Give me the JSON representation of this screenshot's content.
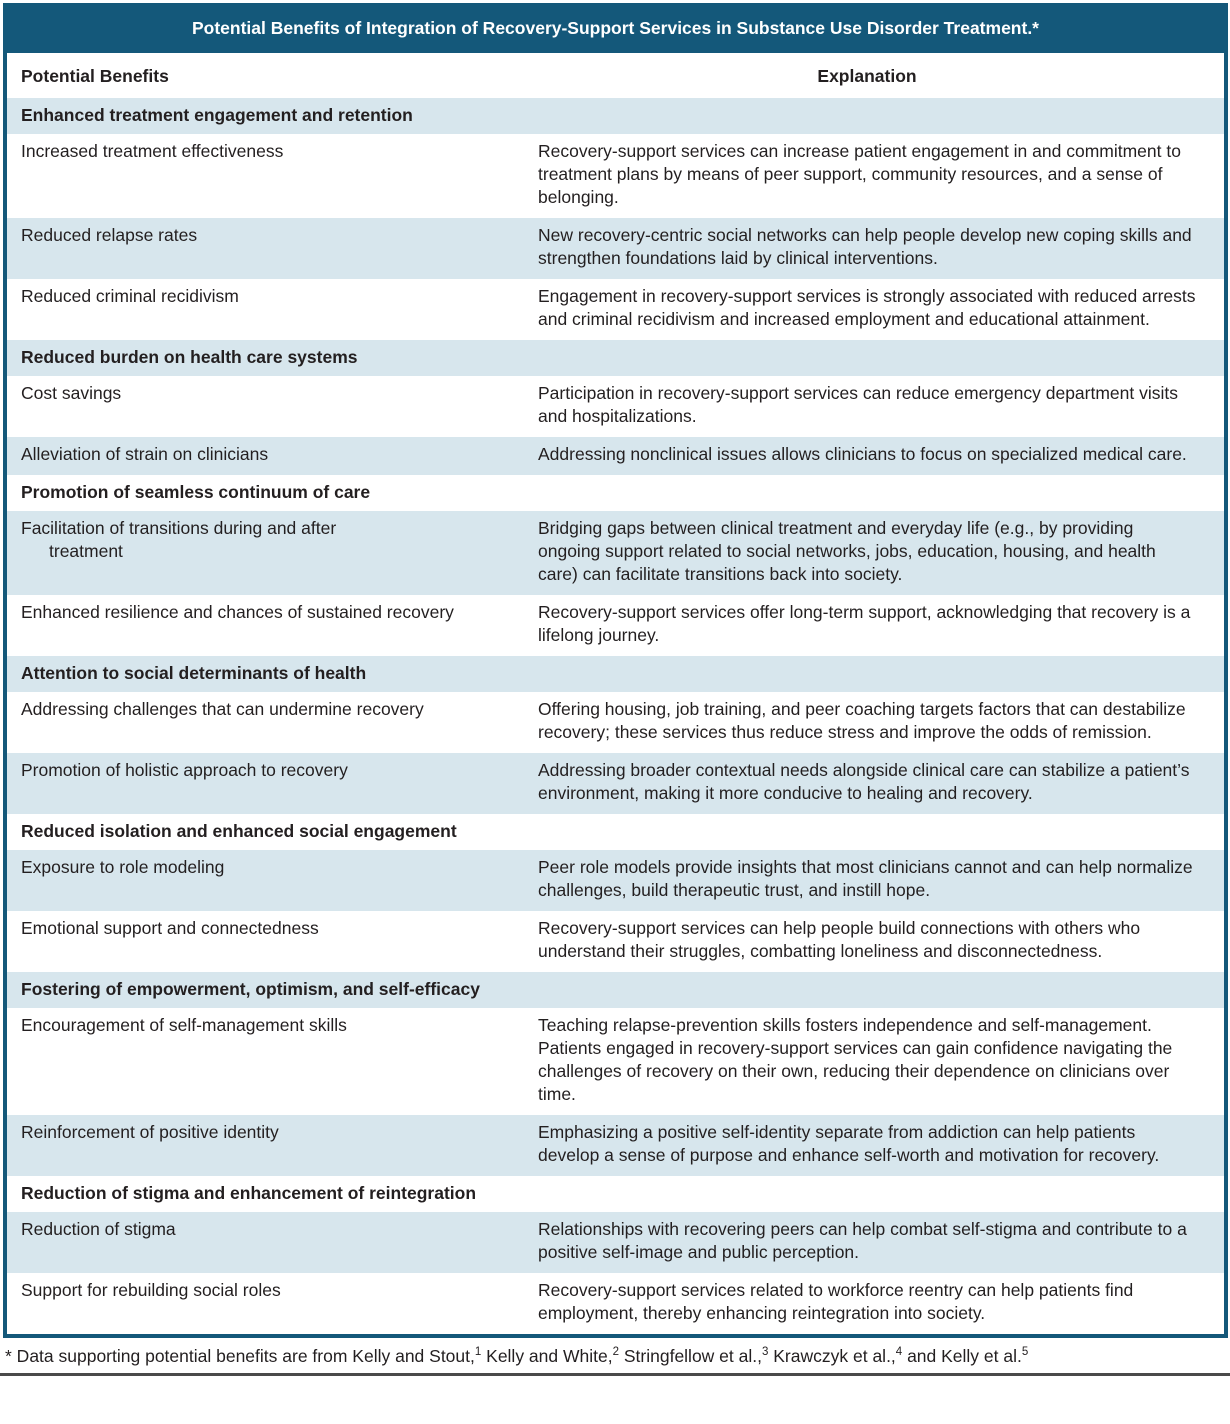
{
  "colors": {
    "header_bar": "#14587A",
    "row_shaded": "#D7E6ED",
    "text": "#231F20",
    "bottom_rule": "#4A4A4A"
  },
  "table": {
    "title": "Potential Benefits of Integration of Recovery-Support Services in Substance Use Disorder Treatment.*",
    "columns": [
      "Potential Benefits",
      "Explanation"
    ],
    "rows": [
      {
        "type": "section",
        "benefit": "Enhanced treatment engagement and retention",
        "explanation": ""
      },
      {
        "type": "item",
        "benefit": "Increased treatment effectiveness",
        "explanation": "Recovery-support services can increase patient engagement in and commitment to treatment plans by means of peer support, community resources, and a sense of belonging."
      },
      {
        "type": "item",
        "benefit": "Reduced relapse rates",
        "explanation": "New recovery-centric social networks can help people develop new coping skills and strengthen foundations laid by clinical interventions."
      },
      {
        "type": "item",
        "benefit": "Reduced criminal recidivism",
        "explanation": "Engagement in recovery-support services is strongly associated with reduced arrests and criminal recidivism and increased employment and educational attainment."
      },
      {
        "type": "section",
        "benefit": "Reduced burden on health care systems",
        "explanation": ""
      },
      {
        "type": "item",
        "benefit": "Cost savings",
        "explanation": "Participation in recovery-support services can reduce emergency department visits and hospitalizations."
      },
      {
        "type": "item",
        "benefit": "Alleviation of strain on clinicians",
        "explanation": "Addressing nonclinical issues allows clinicians to focus on specialized medical care."
      },
      {
        "type": "section",
        "benefit": "Promotion of seamless continuum of care",
        "explanation": ""
      },
      {
        "type": "item",
        "benefit": "Facilitation of transitions during and after\ntreatment",
        "explanation": "Bridging gaps between clinical treatment and everyday life (e.g., by providing ongoing support related to social networks, jobs, education, housing, and health care) can facilitate transitions back into society."
      },
      {
        "type": "item",
        "benefit": "Enhanced resilience and chances of sustained recovery",
        "explanation": "Recovery-support services offer long-term support, acknowledging that recovery is a lifelong journey."
      },
      {
        "type": "section",
        "benefit": "Attention to social determinants of health",
        "explanation": ""
      },
      {
        "type": "item",
        "benefit": "Addressing challenges that can undermine recovery",
        "explanation": "Offering housing, job training, and peer coaching targets factors that can destabilize recovery; these services thus reduce stress and improve the odds of remission."
      },
      {
        "type": "item",
        "benefit": "Promotion of holistic approach to recovery",
        "explanation": "Addressing broader contextual needs alongside clinical care can stabilize a patient’s environment, making it more conducive to healing and recovery."
      },
      {
        "type": "section",
        "benefit": "Reduced isolation and enhanced social engagement",
        "explanation": ""
      },
      {
        "type": "item",
        "benefit": "Exposure to role modeling",
        "explanation": "Peer role models provide insights that most clinicians cannot and can help normalize challenges, build therapeutic trust, and instill hope."
      },
      {
        "type": "item",
        "benefit": "Emotional support and connectedness",
        "explanation": "Recovery-support services can help people build connections with others who understand their struggles, combatting loneliness and disconnectedness."
      },
      {
        "type": "section",
        "benefit": "Fostering of empowerment, optimism, and self-efficacy",
        "explanation": ""
      },
      {
        "type": "item",
        "benefit": "Encouragement of self-management skills",
        "explanation": "Teaching relapse-prevention skills fosters independence and self-management. Patients engaged in recovery-support services can gain confidence navigating the challenges of recovery on their own, reducing their dependence on clinicians over time."
      },
      {
        "type": "item",
        "benefit": "Reinforcement of positive identity",
        "explanation": "Emphasizing a positive self-identity separate from addiction can help patients develop a sense of purpose and enhance self-worth and motivation for recovery."
      },
      {
        "type": "section",
        "benefit": "Reduction of stigma and enhancement of reintegration",
        "explanation": ""
      },
      {
        "type": "item",
        "benefit": "Reduction of stigma",
        "explanation": "Relationships with recovering peers can help combat self-stigma and contribute to a positive self-image and public perception."
      },
      {
        "type": "item",
        "benefit": "Support for rebuilding social roles",
        "explanation": "Recovery-support services related to workforce reentry can help patients find employment, thereby enhancing reintegration into society."
      }
    ]
  },
  "footnote": {
    "marker": "*",
    "lead": " Data supporting potential benefits are from ",
    "citations": [
      {
        "text": "Kelly and Stout,",
        "ref": "1"
      },
      {
        "text": " Kelly and White,",
        "ref": "2"
      },
      {
        "text": " Stringfellow et al.,",
        "ref": "3"
      },
      {
        "text": " Krawczyk et al.,",
        "ref": "4"
      },
      {
        "text": " and Kelly et al.",
        "ref": "5"
      }
    ]
  }
}
